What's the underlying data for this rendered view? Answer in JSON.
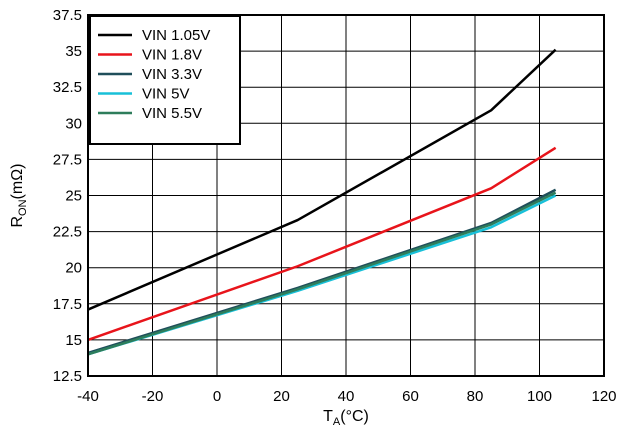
{
  "chart_data": {
    "type": "line",
    "title": "",
    "xlabel": {
      "main": "T",
      "sub": "A",
      "unit": "(°C)"
    },
    "ylabel": {
      "main": "R",
      "sub": "ON",
      "unit": "(mΩ)"
    },
    "xlim": [
      -40,
      120
    ],
    "ylim": [
      12.5,
      37.5
    ],
    "xticks": [
      -40,
      -20,
      0,
      20,
      40,
      60,
      80,
      100,
      120
    ],
    "yticks": [
      12.5,
      15,
      17.5,
      20,
      22.5,
      25,
      27.5,
      30,
      32.5,
      35,
      37.5
    ],
    "xtick_labels": [
      "-40",
      "-20",
      "0",
      "20",
      "40",
      "60",
      "80",
      "100",
      "120"
    ],
    "ytick_labels": [
      "12.5",
      "15",
      "17.5",
      "20",
      "22.5",
      "25",
      "27.5",
      "30",
      "32.5",
      "35",
      "37.5"
    ],
    "grid": true,
    "legend_position": "top-left",
    "series": [
      {
        "name": "VIN 1.05V",
        "color": "#000000",
        "x": [
          -40,
          25,
          85,
          105
        ],
        "y": [
          17.1,
          23.3,
          30.9,
          35.1
        ]
      },
      {
        "name": "VIN 1.8V",
        "color": "#e8141b",
        "x": [
          -40,
          25,
          85,
          105
        ],
        "y": [
          15.0,
          20.1,
          25.5,
          28.3
        ]
      },
      {
        "name": "VIN 3.3V",
        "color": "#1f4e5a",
        "x": [
          -40,
          25,
          85,
          105
        ],
        "y": [
          14.1,
          18.6,
          23.1,
          25.4
        ]
      },
      {
        "name": "VIN 5V",
        "color": "#18c0d8",
        "x": [
          -40,
          25,
          85,
          105
        ],
        "y": [
          14.0,
          18.4,
          22.8,
          25.0
        ]
      },
      {
        "name": "VIN 5.5V",
        "color": "#2e7d5b",
        "x": [
          -40,
          25,
          85,
          105
        ],
        "y": [
          14.0,
          18.5,
          23.0,
          25.2
        ]
      }
    ]
  }
}
